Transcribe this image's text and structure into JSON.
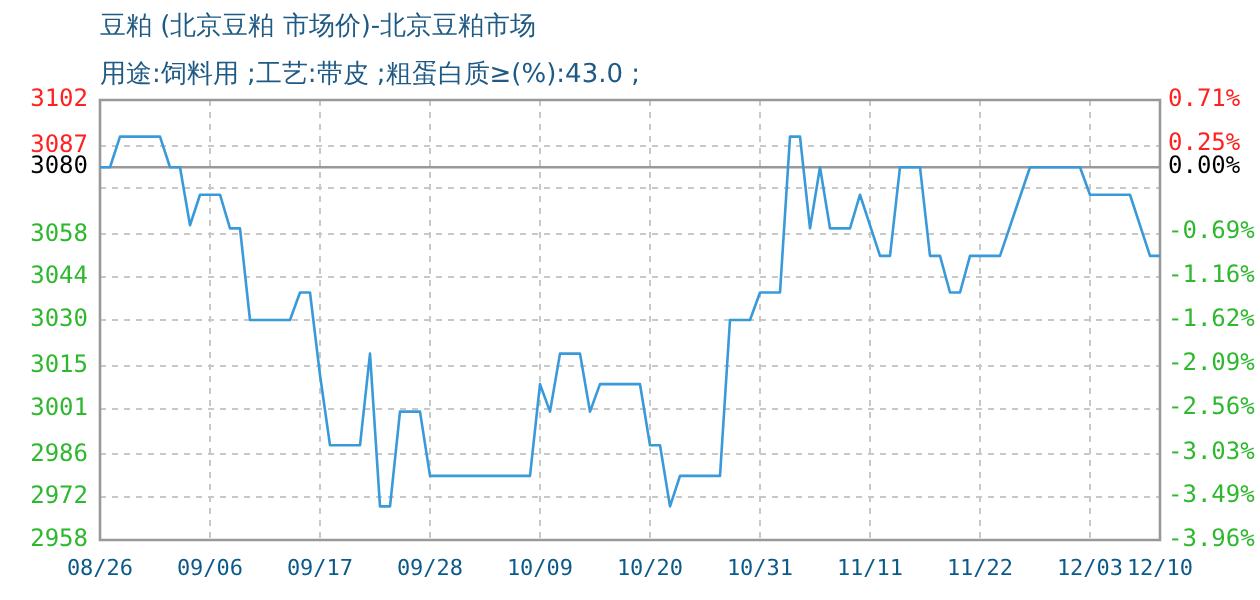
{
  "chart_data": {
    "type": "line",
    "title": "豆粕 (北京豆粕 市场价)-北京豆粕市场",
    "subtitle": "用途:饲料用 ;工艺:带皮 ;粗蛋白质≥(%):43.0 ;",
    "x": [
      "--08-26",
      "--08-27",
      "--08-28",
      "--09-01",
      "--09-02",
      "--09-03",
      "--09-04",
      "--09-05",
      "--09-07",
      "--09-08",
      "--09-09",
      "--09-10",
      "--09-14",
      "--09-15",
      "--09-16",
      "--09-17",
      "--09-18",
      "--09-21",
      "--09-22",
      "--09-23",
      "--09-24",
      "--09-25",
      "--09-27",
      "--09-28",
      "--10-08",
      "--10-09",
      "--10-10",
      "--10-11",
      "--10-13",
      "--10-14",
      "--10-15",
      "--10-19",
      "--10-20",
      "--10-21",
      "--10-22",
      "--10-23",
      "--10-27",
      "--10-28",
      "--10-30",
      "--10-31",
      "--11-02",
      "--11-03",
      "--11-04",
      "--11-05",
      "--11-06",
      "--11-07",
      "--11-09",
      "--11-10",
      "--11-12",
      "--11-13",
      "--11-14",
      "--11-16",
      "--11-17",
      "--11-18",
      "--11-19",
      "--11-20",
      "--11-21",
      "--11-24",
      "--11-27",
      "--12-02",
      "--12-03",
      "--12-07",
      "--12-09",
      "--12-10"
    ],
    "series": [
      {
        "color": "#3a9ad9",
        "values": [
          3080,
          3080,
          3090,
          3090,
          3080,
          3080,
          3061,
          3071,
          3071,
          3060,
          3060,
          3030,
          3030,
          3039,
          3039,
          3012,
          2989,
          2989,
          3019,
          2969,
          2969,
          3000,
          3000,
          2979,
          2979,
          3009,
          3000,
          3019,
          3019,
          3000,
          3009,
          3009,
          2989,
          2989,
          2969,
          2979,
          2979,
          3030,
          3030,
          3039,
          3039,
          3090,
          3090,
          3060,
          3080,
          3060,
          3060,
          3071,
          3051,
          3051,
          3080,
          3080,
          3051,
          3051,
          3039,
          3039,
          3051,
          3051,
          3080,
          3080,
          3071,
          3071,
          3051,
          3051
        ]
      }
    ],
    "xlim": [
      "--08-26",
      "--12-10"
    ],
    "xticks": [
      {
        "value": "--08-26",
        "label": "08/26"
      },
      {
        "value": "--09-06",
        "label": "09/06"
      },
      {
        "value": "--09-17",
        "label": "09/17"
      },
      {
        "value": "--09-28",
        "label": "09/28"
      },
      {
        "value": "--10-09",
        "label": "10/09"
      },
      {
        "value": "--10-20",
        "label": "10/20"
      },
      {
        "value": "--10-31",
        "label": "10/31"
      },
      {
        "value": "--11-11",
        "label": "11/11"
      },
      {
        "value": "--11-22",
        "label": "11/22"
      },
      {
        "value": "--12-03",
        "label": "12/03"
      },
      {
        "value": "--12-10",
        "label": "12/10"
      }
    ],
    "ylim": [
      2958,
      3102
    ],
    "yticks": [
      2958,
      2972,
      2986,
      3001,
      3015,
      3030,
      3044,
      3058,
      {
        "value": 3073.2,
        "label": null
      },
      3080,
      3087,
      3102
    ],
    "y2lim": [
      -3.96,
      0.71
    ],
    "y2ticks": [
      {
        "value": -3.96,
        "label": "-3.96%"
      },
      {
        "value": -3.49,
        "label": "-3.49%"
      },
      {
        "value": -3.03,
        "label": "-3.03%"
      },
      {
        "value": -2.56,
        "label": "-2.56%"
      },
      {
        "value": -2.09,
        "label": "-2.09%"
      },
      {
        "value": -1.62,
        "label": "-1.62%"
      },
      {
        "value": -1.16,
        "label": "-1.16%"
      },
      {
        "value": -0.69,
        "label": "-0.69%"
      },
      {
        "value": 0,
        "label": "0.00%"
      },
      {
        "value": 0.25,
        "label": "0.25%"
      },
      {
        "value": 0.71,
        "label": "0.71%"
      }
    ],
    "ref_lines": [
      {
        "axis": "y",
        "value": 3080,
        "color": "#999999"
      }
    ],
    "grid": true,
    "legend": false,
    "marker": "none",
    "line_style": "solid"
  }
}
